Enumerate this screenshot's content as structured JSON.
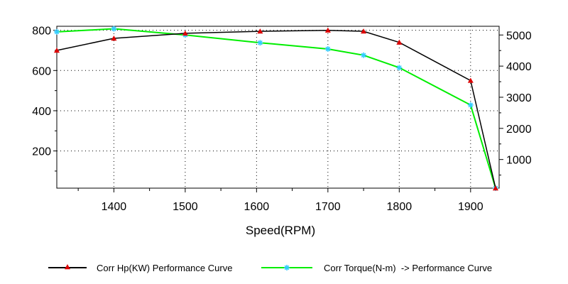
{
  "chart_data": {
    "type": "line",
    "title": "",
    "xlabel": "Speed(RPM)",
    "ylabel": "",
    "y2label": "",
    "xlim": [
      1320,
      1940
    ],
    "ylim": [
      15,
      820
    ],
    "y2lim": [
      80,
      5280
    ],
    "x_ticks": [
      1400,
      1500,
      1600,
      1700,
      1800,
      1900
    ],
    "x_tick_labels": [
      "1400",
      "1500",
      "1600",
      "1700",
      "1800",
      "1900"
    ],
    "y_ticks": [
      200,
      400,
      600,
      800
    ],
    "y_tick_labels": [
      "200",
      "400",
      "600",
      "800"
    ],
    "y2_ticks": [
      1000,
      2000,
      3000,
      4000,
      5000
    ],
    "y2_tick_labels": [
      "1000",
      "2000",
      "3000",
      "4000",
      "5000"
    ],
    "grid": true,
    "legend_position": "bottom",
    "series": [
      {
        "name": "Corr Hp(KW) Performance Curve",
        "axis": "left",
        "color": "#000000",
        "marker_color": "#dd0000",
        "marker": "triangle",
        "x": [
          1320,
          1400,
          1500,
          1605,
          1700,
          1750,
          1800,
          1900,
          1935
        ],
        "values": [
          700,
          760,
          785,
          795,
          800,
          795,
          740,
          550,
          15
        ]
      },
      {
        "name": "Corr Torque(N-m)  -> Performance Curve",
        "axis": "right",
        "color": "#00ee00",
        "marker_color": "#33ccff",
        "marker": "star",
        "x": [
          1320,
          1400,
          1500,
          1605,
          1700,
          1750,
          1800,
          1900,
          1935
        ],
        "values": [
          5100,
          5200,
          5000,
          4750,
          4550,
          4350,
          3950,
          2750,
          80
        ]
      }
    ]
  }
}
